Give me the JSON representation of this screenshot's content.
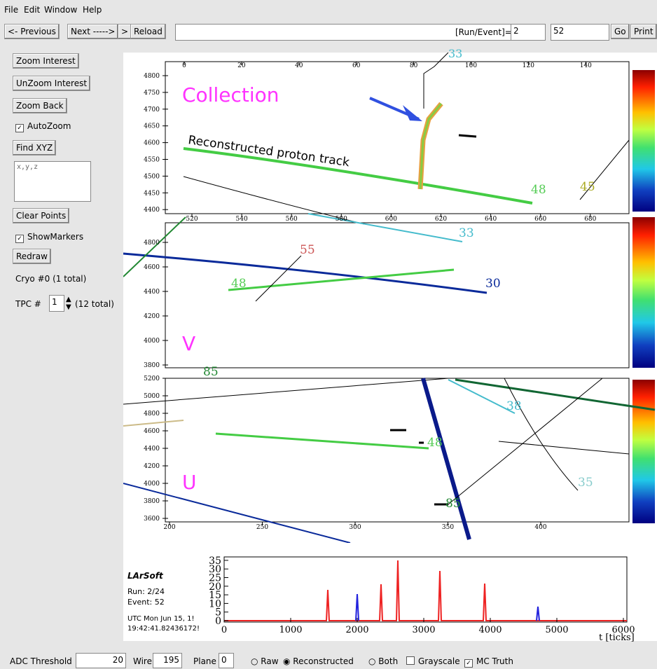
{
  "menu": [
    "File",
    "Edit",
    "Window",
    "Help"
  ],
  "toolbar": {
    "previous": "<- Previous",
    "next": "Next ----->",
    "forward": ">",
    "reload": "Reload",
    "run_event_label": "[Run/Event]=",
    "run": "2",
    "event": "52",
    "go": "Go",
    "print": "Print"
  },
  "sidebar": {
    "zoom_interest": "Zoom Interest",
    "unzoom_interest": "UnZoom Interest",
    "zoom_back": "Zoom Back",
    "autozoom": "AutoZoom",
    "find_xyz": "Find XYZ",
    "xyz_field": "x,y,z",
    "clear_points": "Clear Points",
    "show_markers": "ShowMarkers",
    "redraw": "Redraw",
    "cryo": "Cryo #0 (1 total)",
    "tpc_label": "TPC  #",
    "tpc_value": "1",
    "tpc_total": "(12 total)"
  },
  "views": [
    {
      "label": "Collection",
      "top_ticks": [
        "0",
        "20",
        "40",
        "60",
        "80",
        "100",
        "120",
        "140"
      ],
      "left_ticks": [
        "4800",
        "4750",
        "4700",
        "4650",
        "4600",
        "4550",
        "4500",
        "4450",
        "4400"
      ],
      "bottom_ticks": [
        "520",
        "540",
        "560",
        "580",
        "600",
        "620",
        "640",
        "660",
        "680"
      ],
      "track_labels": [
        "33",
        "48",
        "45"
      ]
    },
    {
      "label": "V",
      "left_ticks": [
        "4800",
        "4600",
        "4400",
        "4200",
        "4000",
        "3800"
      ],
      "track_labels": [
        "33",
        "55",
        "48",
        "30",
        "85"
      ]
    },
    {
      "label": "U",
      "left_ticks": [
        "5200",
        "5000",
        "4800",
        "4600",
        "4400",
        "4200",
        "4000",
        "3800",
        "3600"
      ],
      "bottom_ticks": [
        "200",
        "250",
        "300",
        "350",
        "400"
      ],
      "track_labels": [
        "38",
        "48",
        "35",
        "85"
      ]
    }
  ],
  "annotation": "Reconstructed proton track",
  "waveform": {
    "title": "LArSoft",
    "run": "Run:  2/24",
    "event": "Event: 52",
    "utc": "UTC Mon Jun 15, 1!",
    "time": "19:42:41.82436172!",
    "x_ticks": [
      "0",
      "1000",
      "2000",
      "3000",
      "4000",
      "5000",
      "6000"
    ],
    "y_ticks": [
      "0",
      "5",
      "10",
      "15",
      "20",
      "25",
      "30",
      "35"
    ],
    "x_label": "t [ticks]"
  },
  "bottom_bar": {
    "adc_label": "ADC Threshold",
    "adc_value": "20",
    "wire_label": "Wire",
    "wire_value": "195",
    "plane_label": "Plane",
    "plane_value": "0",
    "raw": "Raw",
    "reconstructed": "Reconstructed",
    "both": "Both",
    "grayscale": "Grayscale",
    "mc_truth": "MC Truth"
  }
}
